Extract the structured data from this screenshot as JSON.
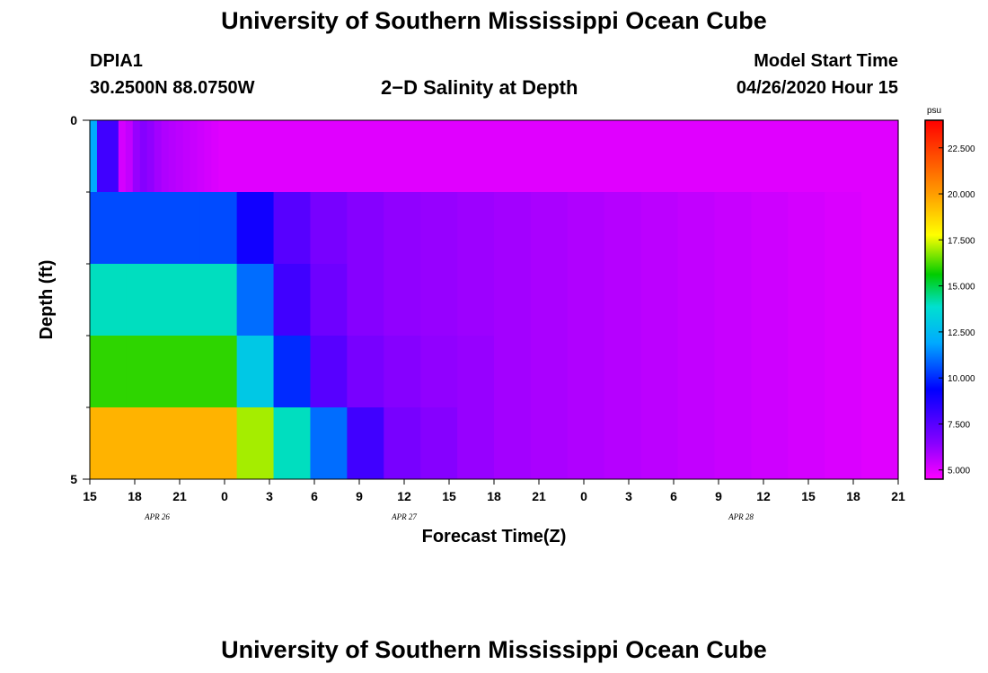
{
  "page": {
    "title_top": "University of Southern Mississippi Ocean Cube",
    "title_bottom": "University of Southern Mississippi Ocean Cube",
    "station_id": "DPIA1",
    "station_coords": "30.2500N 88.0750W",
    "plot_title": "2−D Salinity at Depth",
    "model_start_label": "Model Start Time",
    "model_start_value": "04/26/2020 Hour 15"
  },
  "chart_data": {
    "type": "heatmap",
    "title": "2−D Salinity at Depth",
    "xlabel": "Forecast Time(Z)",
    "ylabel": "Depth (ft)",
    "x_range_hours": [
      0,
      54
    ],
    "x_tick_hours": [
      0,
      3,
      6,
      9,
      12,
      15,
      18,
      21,
      24,
      27,
      30,
      33,
      36,
      39,
      42,
      45,
      48,
      51,
      54
    ],
    "x_tick_labels": [
      "15",
      "18",
      "21",
      "0",
      "3",
      "6",
      "9",
      "12",
      "15",
      "18",
      "21",
      "0",
      "3",
      "6",
      "9",
      "12",
      "15",
      "18",
      "21"
    ],
    "date_labels": [
      {
        "hour": 4.5,
        "label": "APR 26"
      },
      {
        "hour": 21,
        "label": "APR 27"
      },
      {
        "hour": 43.5,
        "label": "APR 28"
      }
    ],
    "y_range": [
      0,
      5
    ],
    "y_tick_labels": [
      {
        "value": 0,
        "label": "0"
      },
      {
        "value": 5,
        "label": "5"
      }
    ],
    "y_minor_ticks": [
      1,
      2,
      3,
      4
    ],
    "depth_layers": 5,
    "colorbar": {
      "unit": "psu",
      "min": 4.5,
      "max": 24,
      "tick_values": [
        5.0,
        7.5,
        10.0,
        12.5,
        15.0,
        17.5,
        20.0,
        22.5
      ],
      "tick_labels": [
        "5.000",
        "7.500",
        "10.000",
        "12.500",
        "15.000",
        "17.500",
        "20.000",
        "22.500"
      ]
    },
    "series": [
      {
        "depth_layer": 0,
        "values": [
          12,
          8,
          8,
          8,
          5.2,
          5.5,
          6.2,
          6.5,
          6.3,
          6,
          5.8,
          5.7,
          5.6,
          5.5,
          5.4,
          5.3,
          5.2,
          5.1,
          5,
          5,
          5,
          5,
          5,
          5,
          5,
          5,
          5,
          5,
          5,
          5,
          5,
          5,
          5,
          5,
          5,
          5,
          5,
          5,
          5,
          5,
          5,
          5,
          5,
          5,
          5,
          5,
          5,
          5,
          5,
          5,
          5,
          5,
          5,
          5,
          5,
          5,
          5,
          5,
          5,
          5,
          5,
          5,
          5,
          5,
          5,
          5,
          5,
          5,
          5,
          5,
          5,
          5,
          5,
          5,
          5,
          5,
          5,
          5,
          5,
          5,
          5,
          5,
          5,
          5,
          5,
          5,
          5,
          5,
          5,
          5,
          5,
          5,
          5,
          5,
          5,
          5,
          5,
          5,
          5,
          5,
          5,
          5,
          5,
          5,
          5,
          5,
          5,
          5,
          5,
          5,
          5,
          5,
          5
        ]
      },
      {
        "depth_layer": 1,
        "values": [
          10.5,
          10.5,
          10.5,
          10.5,
          9,
          7.5,
          6.8,
          6.5,
          6.3,
          6.2,
          6.1,
          6,
          5.9,
          5.8,
          5.7,
          5.6,
          5.5,
          5.4,
          5.3,
          5.2,
          5.1,
          5
        ]
      },
      {
        "depth_layer": 2,
        "values": [
          14,
          14,
          14,
          14,
          11,
          8,
          7,
          6.5,
          6.3,
          6.2,
          6.1,
          6,
          5.9,
          5.8,
          5.7,
          5.6,
          5.5,
          5.4,
          5.3,
          5.2,
          5.1,
          5
        ]
      },
      {
        "depth_layer": 3,
        "values": [
          16,
          16,
          16,
          16,
          13,
          10,
          7.5,
          6.8,
          6.5,
          6.3,
          6.2,
          6,
          5.9,
          5.8,
          5.7,
          5.6,
          5.5,
          5.4,
          5.3,
          5.2,
          5.1,
          5
        ]
      },
      {
        "depth_layer": 4,
        "values": [
          19.5,
          19.5,
          19.5,
          19.5,
          17,
          14,
          11,
          8,
          6.8,
          6.5,
          6.2,
          6,
          5.9,
          5.8,
          5.7,
          5.6,
          5.5,
          5.4,
          5.3,
          5.2,
          5.1,
          5
        ]
      }
    ]
  }
}
